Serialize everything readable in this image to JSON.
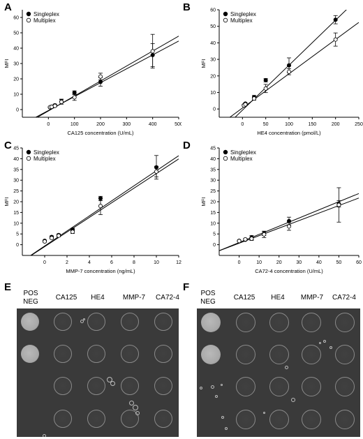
{
  "panels": [
    {
      "letter": "A"
    },
    {
      "letter": "B"
    },
    {
      "letter": "C"
    },
    {
      "letter": "D"
    },
    {
      "letter": "E"
    },
    {
      "letter": "F"
    }
  ],
  "legend": {
    "singleplex": "Singleplex",
    "multiplex": "Multiplex"
  },
  "chart_data": [
    {
      "panel": "A",
      "type": "scatter",
      "xlabel": "CA125 concentration (U/mL)",
      "ylabel": "MFI",
      "xlim": [
        -100,
        500
      ],
      "ylim": [
        -5,
        65
      ],
      "xticks": [
        0,
        100,
        200,
        300,
        400,
        500
      ],
      "yticks": [
        0,
        10,
        20,
        30,
        40,
        50,
        60
      ],
      "series": [
        {
          "name": "Singleplex",
          "marker": "filled",
          "x": [
            6.25,
            12.5,
            25,
            50,
            100,
            200,
            400
          ],
          "y": [
            1.5,
            1.9,
            2.8,
            5.2,
            11,
            18,
            35.5
          ],
          "err": [
            0.4,
            0.4,
            0.8,
            1.6,
            1.2,
            2.8,
            7.5
          ],
          "fit": [
            -0.6,
            0.0905
          ]
        },
        {
          "name": "Multiplex",
          "marker": "open",
          "x": [
            6.25,
            12.5,
            25,
            50,
            100,
            200,
            400
          ],
          "y": [
            1.6,
            1.8,
            2.4,
            5.0,
            8,
            21.5,
            38
          ],
          "err": [
            0.3,
            0.3,
            0.6,
            1.5,
            2.0,
            2.2,
            11
          ],
          "fit": [
            -0.9,
            0.0975
          ]
        }
      ]
    },
    {
      "panel": "B",
      "type": "scatter",
      "xlabel": "HE4 concentration (pmol/L)",
      "ylabel": "MFI",
      "xlim": [
        -50,
        250
      ],
      "ylim": [
        -5,
        60
      ],
      "xticks": [
        0,
        50,
        100,
        150,
        200,
        250
      ],
      "yticks": [
        0,
        10,
        20,
        30,
        40,
        50,
        60
      ],
      "series": [
        {
          "name": "Singleplex",
          "marker": "filled",
          "x": [
            3.1,
            6.25,
            25,
            50,
            100,
            200
          ],
          "y": [
            2.3,
            3.3,
            7.2,
            17.4,
            26.4,
            54
          ],
          "err": [
            0.5,
            0.5,
            1.0,
            1.0,
            4.5,
            2.5
          ],
          "fit": [
            -0.7,
            0.272
          ]
        },
        {
          "name": "Multiplex",
          "marker": "open",
          "x": [
            3.1,
            6.25,
            25,
            50,
            100,
            200
          ],
          "y": [
            2.2,
            2.8,
            6.3,
            12.4,
            22.5,
            42
          ],
          "err": [
            0.4,
            0.4,
            1.0,
            2.5,
            1.8,
            4.0
          ],
          "fit": [
            0.6,
            0.207
          ]
        }
      ]
    },
    {
      "panel": "C",
      "type": "scatter",
      "xlabel": "MMP-7 concentration (ng/mL)",
      "ylabel": "MFI",
      "xlim": [
        -2,
        12
      ],
      "ylim": [
        -5,
        45
      ],
      "xticks": [
        0,
        2,
        4,
        6,
        8,
        10,
        12
      ],
      "yticks": [
        0,
        5,
        10,
        15,
        20,
        25,
        30,
        35,
        40,
        45
      ],
      "series": [
        {
          "name": "Singleplex",
          "marker": "filled",
          "x": [
            0,
            0.625,
            1.25,
            2.5,
            5,
            10
          ],
          "y": [
            1.8,
            3.6,
            4.5,
            7.0,
            21.5,
            36
          ],
          "err": [
            0.3,
            0.5,
            0.5,
            0.6,
            1.0,
            5.5
          ],
          "fit": [
            -0.6,
            3.5
          ]
        },
        {
          "name": "Multiplex",
          "marker": "open",
          "x": [
            0,
            0.625,
            1.25,
            2.5,
            5,
            10
          ],
          "y": [
            1.5,
            3.1,
            4.2,
            6.0,
            18,
            34
          ],
          "err": [
            0.3,
            0.4,
            0.5,
            0.8,
            4.0,
            2.5
          ],
          "fit": [
            -0.9,
            3.4
          ]
        }
      ]
    },
    {
      "panel": "D",
      "type": "scatter",
      "xlabel": "CA72-4 concentration (U/mL)",
      "ylabel": "MFI",
      "xlim": [
        -10,
        60
      ],
      "ylim": [
        -5,
        45
      ],
      "xticks": [
        0,
        10,
        20,
        30,
        40,
        50,
        60
      ],
      "yticks": [
        0,
        5,
        10,
        15,
        20,
        25,
        30,
        35,
        40,
        45
      ],
      "series": [
        {
          "name": "Singleplex",
          "marker": "filled",
          "x": [
            0,
            3.1,
            6.25,
            12.5,
            25,
            50
          ],
          "y": [
            1.8,
            2.3,
            3.3,
            5.2,
            11,
            19
          ],
          "err": [
            0.3,
            0.4,
            1.0,
            1.0,
            1.8,
            1.5
          ],
          "fit": [
            1.0,
            0.38
          ]
        },
        {
          "name": "Multiplex",
          "marker": "open",
          "x": [
            0,
            3.1,
            6.25,
            12.5,
            25,
            50
          ],
          "y": [
            1.7,
            2.5,
            2.8,
            4.8,
            8.5,
            18.5
          ],
          "err": [
            0.3,
            0.4,
            0.8,
            1.5,
            1.8,
            8.0
          ],
          "fit": [
            0.7,
            0.35
          ]
        }
      ]
    }
  ],
  "blots": [
    {
      "panel": "E",
      "labels": [
        "POS\nNEG",
        "CA125",
        "HE4",
        "MMP-7",
        "CA72-4"
      ]
    },
    {
      "panel": "F",
      "labels": [
        "POS\nNEG",
        "CA125",
        "HE4",
        "MMP-7",
        "CA72-4"
      ]
    }
  ]
}
